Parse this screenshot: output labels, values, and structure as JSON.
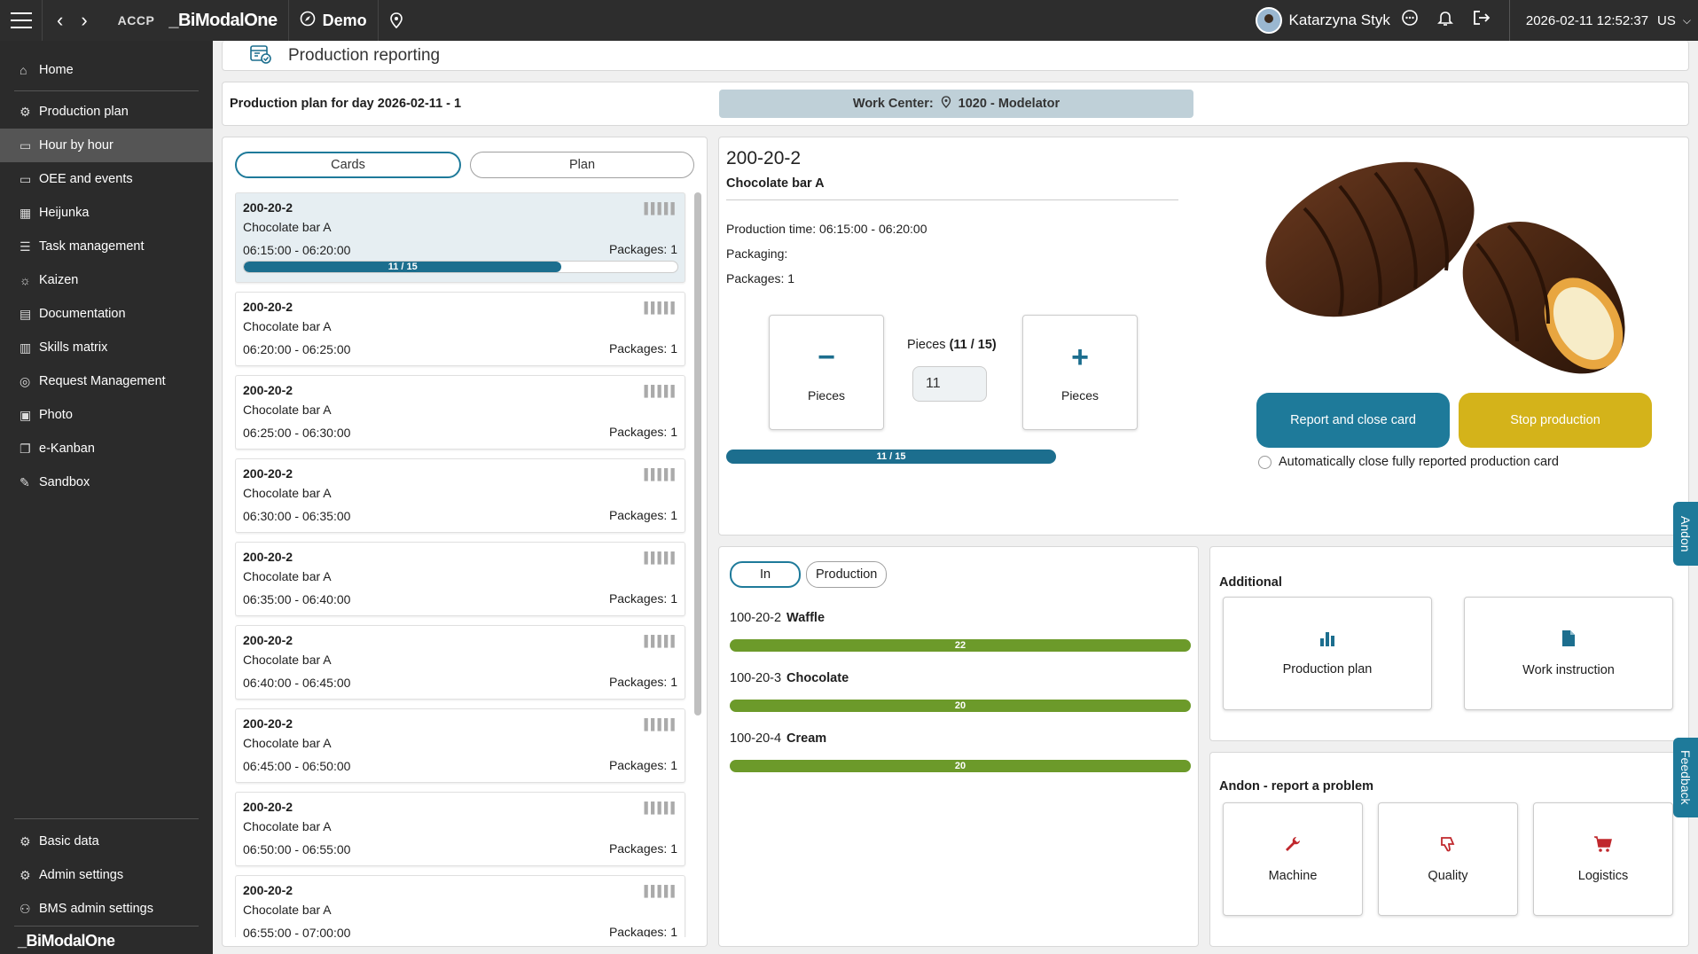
{
  "topbar": {
    "env": "ACCP",
    "brand": "_BiModalOne",
    "demo": "Demo",
    "user": "Katarzyna Styk",
    "datetime": "2026-02-11 12:52:37",
    "locale": "US"
  },
  "sidebar": {
    "items": [
      {
        "label": "Home",
        "icon": "home-icon"
      },
      {
        "label": "Production plan",
        "icon": "gear-icon"
      },
      {
        "label": "Hour by hour",
        "icon": "monitor-icon"
      },
      {
        "label": "OEE and events",
        "icon": "monitor-icon"
      },
      {
        "label": "Heijunka",
        "icon": "grid-icon"
      },
      {
        "label": "Task management",
        "icon": "list-icon"
      },
      {
        "label": "Kaizen",
        "icon": "bulb-icon"
      },
      {
        "label": "Documentation",
        "icon": "docs-icon"
      },
      {
        "label": "Skills matrix",
        "icon": "table-icon"
      },
      {
        "label": "Request Management",
        "icon": "request-icon"
      },
      {
        "label": "Photo",
        "icon": "photo-icon"
      },
      {
        "label": "e-Kanban",
        "icon": "copy-icon"
      },
      {
        "label": "Sandbox",
        "icon": "edit-icon"
      }
    ],
    "bottom_items": [
      {
        "label": "Basic data",
        "icon": "gear-icon"
      },
      {
        "label": "Admin settings",
        "icon": "gear-icon"
      },
      {
        "label": "BMS admin settings",
        "icon": "users-gear-icon"
      }
    ],
    "brand": "_BiModalOne"
  },
  "page": {
    "title": "Production reporting",
    "plan_title": "Production plan for day 2026-02-11 - 1",
    "work_center_label": "Work Center:",
    "work_center_value": "1020 - Modelator"
  },
  "cards_panel": {
    "tabs": [
      "Cards",
      "Plan"
    ],
    "cards": [
      {
        "code": "200-20-2",
        "name": "Chocolate bar A",
        "time": "06:15:00 - 06:20:00",
        "packages": "Packages: 1",
        "progress": "11 / 15",
        "progress_fraction": 0.733
      },
      {
        "code": "200-20-2",
        "name": "Chocolate bar A",
        "time": "06:20:00 - 06:25:00",
        "packages": "Packages: 1"
      },
      {
        "code": "200-20-2",
        "name": "Chocolate bar A",
        "time": "06:25:00 - 06:30:00",
        "packages": "Packages: 1"
      },
      {
        "code": "200-20-2",
        "name": "Chocolate bar A",
        "time": "06:30:00 - 06:35:00",
        "packages": "Packages: 1"
      },
      {
        "code": "200-20-2",
        "name": "Chocolate bar A",
        "time": "06:35:00 - 06:40:00",
        "packages": "Packages: 1"
      },
      {
        "code": "200-20-2",
        "name": "Chocolate bar A",
        "time": "06:40:00 - 06:45:00",
        "packages": "Packages: 1"
      },
      {
        "code": "200-20-2",
        "name": "Chocolate bar A",
        "time": "06:45:00 - 06:50:00",
        "packages": "Packages: 1"
      },
      {
        "code": "200-20-2",
        "name": "Chocolate bar A",
        "time": "06:50:00 - 06:55:00",
        "packages": "Packages: 1"
      },
      {
        "code": "200-20-2",
        "name": "Chocolate bar A",
        "time": "06:55:00 - 07:00:00",
        "packages": "Packages: 1"
      }
    ]
  },
  "detail": {
    "code": "200-20-2",
    "name": "Chocolate bar A",
    "production_time": "Production time: 06:15:00 - 06:20:00",
    "packaging": "Packaging:",
    "packages": "Packages: 1",
    "minus_label": "Pieces",
    "plus_label": "Pieces",
    "pieces_label_prefix": "Pieces",
    "pieces_count": "(11 / 15)",
    "pieces_value": "11",
    "progress": "11 / 15",
    "report_button": "Report and close card",
    "stop_button": "Stop production",
    "auto_close_label": "Automatically close fully reported production card"
  },
  "materials": {
    "tabs": [
      "In",
      "Production"
    ],
    "rows": [
      {
        "code": "100-20-2",
        "name": "Waffle",
        "value": "22"
      },
      {
        "code": "100-20-3",
        "name": "Chocolate",
        "value": "20"
      },
      {
        "code": "100-20-4",
        "name": "Cream",
        "value": "20"
      }
    ]
  },
  "additional": {
    "title": "Additional",
    "tiles": [
      {
        "label": "Production plan",
        "icon": "bar-chart-icon"
      },
      {
        "label": "Work instruction",
        "icon": "document-icon"
      }
    ]
  },
  "andon": {
    "title": "Andon - report a problem",
    "tiles": [
      {
        "label": "Machine",
        "icon": "wrench-icon"
      },
      {
        "label": "Quality",
        "icon": "thumbs-down-icon"
      },
      {
        "label": "Logistics",
        "icon": "cart-icon"
      }
    ]
  },
  "side_tabs": {
    "andon": "Andon",
    "feedback": "Feedback"
  },
  "colors": {
    "accent": "#1e7a9a",
    "stop": "#d4b31a",
    "material_bar": "#6c9a2a",
    "sidebar_bg": "#2b2b2b",
    "alert": "#c0282d"
  }
}
